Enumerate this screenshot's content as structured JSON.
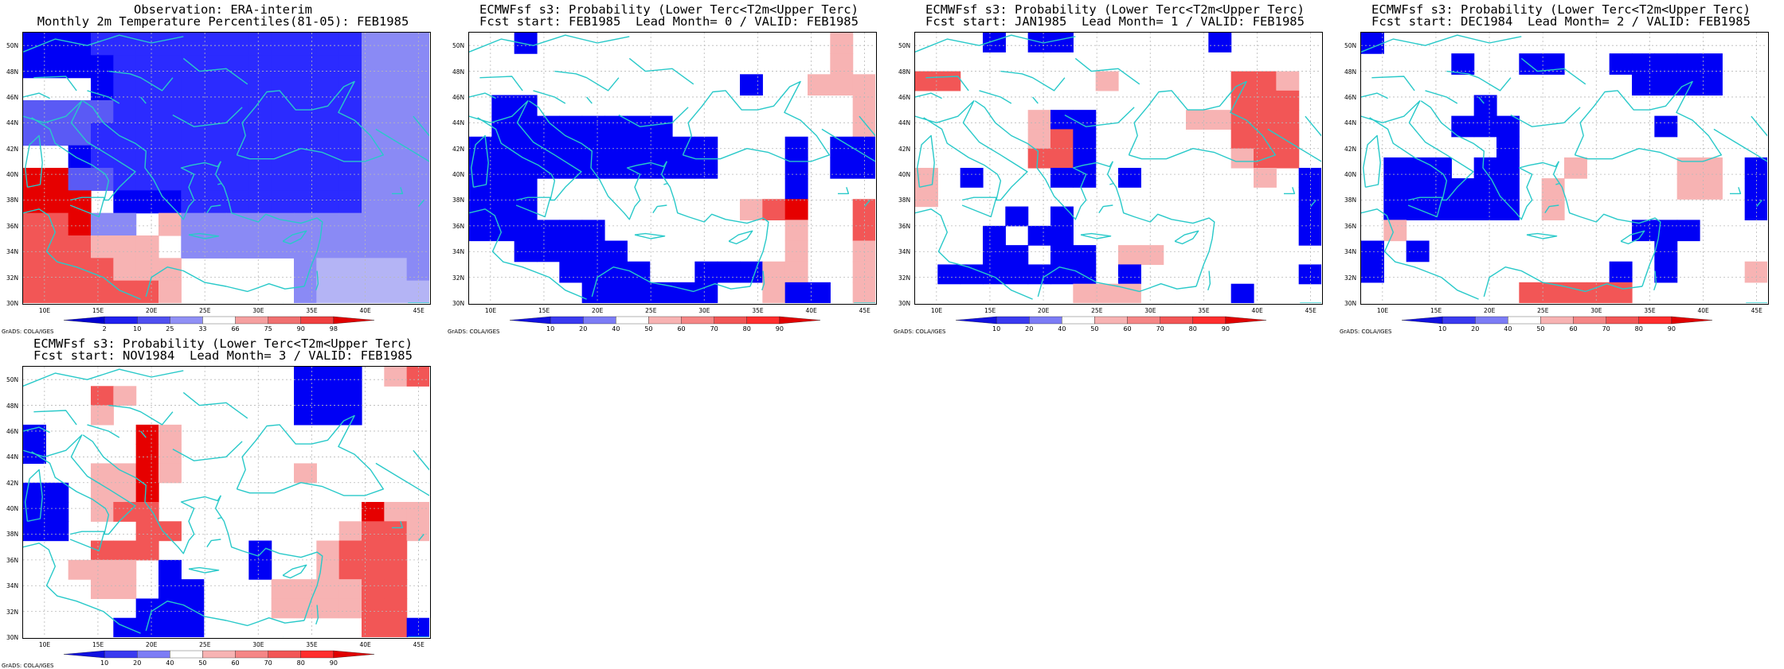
{
  "credit": "GrADS: COLA/IGES",
  "lon_labels": [
    "10E",
    "15E",
    "20E",
    "25E",
    "30E",
    "35E",
    "40E",
    "45E"
  ],
  "lat_labels": [
    "50N",
    "48N",
    "46N",
    "44N",
    "42N",
    "40N",
    "38N",
    "36N",
    "34N",
    "32N",
    "30N"
  ],
  "colors": {
    "coast": "#29c9c9",
    "grid": "#b8b8b8",
    "blue_scale": [
      "#0000f5",
      "#2b2bff",
      "#5a5af5",
      "#8a8af5",
      "#b4b4f5"
    ],
    "red_scale": [
      "#f7b3b3",
      "#f78080",
      "#f25656",
      "#ff3030",
      "#e60000"
    ]
  },
  "panels": [
    {
      "title1": "Observation: ERA-interim",
      "title2": "Monthly 2m Temperature Percentiles(81-05): FEB1985",
      "colorbar_ticks": [
        "2",
        "10",
        "25",
        "33",
        "66",
        "75",
        "90",
        "98"
      ],
      "colorbar_type": "percentile",
      "grid": [
        "BBBbbbbbbbbbbbbmmm",
        "BBBBbbbbbbbbbbbmmm",
        "WWWBbbbbbbbbbbbmmm",
        "MMMMbbbbbbbbbbbmmm",
        "MMMbbbbbbbbbbbbmmm",
        "WWBbbbbbbbbbbbbmmm",
        "RRMMbbbbbbbbbbbmmm",
        "RRRWBBBbbbbbbbbmmm",
        "rrRmmWpmmmmmmmmmmm",
        "rrrpppWmmmmmmmmmmm",
        "rrrrpppWWWWWmllllm",
        "rrrrrrpWWWWWmlllll"
      ]
    },
    {
      "title1": "ECMWFsf s3: Probability (Lower Terc<T2m<Upper Terc)",
      "title2": "Fcst start: FEB1985  Lead Month= 0 / VALID: FEB1985",
      "colorbar_ticks": [
        "10",
        "20",
        "40",
        "50",
        "60",
        "70",
        "80",
        "90"
      ],
      "colorbar_type": "probability",
      "grid": [
        "WWBWWWWWWWWWWWWWpW",
        "WWWWWWWWWWWWWWWWpW",
        "WWWWWWWWWWWWBWWppp",
        "WBBWWWWWWWWWWWWWWp",
        "WBBBBBBBBWWWWWWWWp",
        "BBBBBBBBBBBWWWBWBB",
        "BBBBBBBBBBBWWWBWBB",
        "BBBWWWWWWWWWWWBWWW",
        "BBBWWWWWWWWWprRWWr",
        "BBBBBBWWWWWWWWpWWr",
        "WWBBBBBWWWWWWWpWWp",
        "WWWWBBBBWWBBBppWWp",
        "WWWWWBBBBBBWWpBBWp"
      ]
    },
    {
      "title1": "ECMWFsf s3: Probability (Lower Terc<T2m<Upper Terc)",
      "title2": "Fcst start: JAN1985  Lead Month= 1 / VALID: FEB1985",
      "colorbar_ticks": [
        "10",
        "20",
        "40",
        "50",
        "60",
        "70",
        "80",
        "90"
      ],
      "colorbar_type": "probability",
      "grid": [
        "WWWBWBBWWWWWWBWWWW",
        "WWWWWWWWWWWWWWWWWW",
        "rrWWWWWWpWWWWWrrpW",
        "WWWWWWWWWWWWWWrrrW",
        "WWWWWpBBWWWWpprrrW",
        "WWWWWprBWWWWWWrrrW",
        "WWWWWrrBWWWWWWprrW",
        "pWBWWWBBWBWWWWWpWB",
        "pWWWWWWWWWWWWWWWWB",
        "WWWWBWBWWWWWWWWWWB",
        "WWWBWBBWWWWWWWWWWB",
        "WWWBBWBBWppWWWWWWW",
        "WBBBBBBBWBWWWWWWWB",
        "WWWWWWWpppWWWWBWWW"
      ]
    },
    {
      "title1": "ECMWFsf s3: Probability (Lower Terc<T2m<Upper Terc)",
      "title2": "Fcst start: DEC1984  Lead Month= 2 / VALID: FEB1985",
      "colorbar_ticks": [
        "10",
        "20",
        "40",
        "50",
        "60",
        "70",
        "80",
        "90"
      ],
      "colorbar_type": "probability",
      "grid": [
        "BWWWWWWWWWWWWWWWWW",
        "WWWWBWWBBWWBBBBBWW",
        "WWWWWWWWWWWWBBBBWW",
        "WWWWWBWWWWWWWWWWWW",
        "WWWWBBBWWWWWWBWWWW",
        "WWWWWWBWWWWWWWWWWW",
        "WBBBWBBWWpWWWWppWB",
        "WBBBBBBWpWWWWWppWB",
        "WBBBBBBWpWWWWWWWWB",
        "WpWWWWWWWWWWBBBWWW",
        "BWBWWWWWWWWWWBWWWW",
        "BWWWWWWWWWWBWBWWWp",
        "WWWWWWWrrrrrWWWWWW"
      ]
    },
    {
      "title1": "ECMWFsf s3: Probability (Lower Terc<T2m<Upper Terc)",
      "title2": "Fcst start: NOV1984  Lead Month= 3 / VALID: FEB1985",
      "colorbar_ticks": [
        "10",
        "20",
        "40",
        "50",
        "60",
        "70",
        "80",
        "90"
      ],
      "colorbar_type": "probability",
      "grid": [
        "WWWWWWWWWWWWBBBWpr",
        "WWWrpWWWWWWWBBBWWW",
        "WWWpWWWWWWWWBBBWWW",
        "BWWWWRpWWWWWWWWWWW",
        "BWWWWRpWWWWWWWWWWW",
        "WWWppRpWWWWWpWWWWW",
        "BBWppRWWWWWWWWWWWW",
        "BBWprrWWWWWWWWWRpp",
        "BBWWWrrWWWWWWWprrp",
        "WWWrrrWWWWBWWprrrW",
        "WWpppWBWWWBWWprrrW",
        "WWWppWBBWWWpppprrW",
        "WWWWWBBBWWWpppprrW",
        "WWWWBBBBWWWWWWWrrB"
      ]
    }
  ]
}
